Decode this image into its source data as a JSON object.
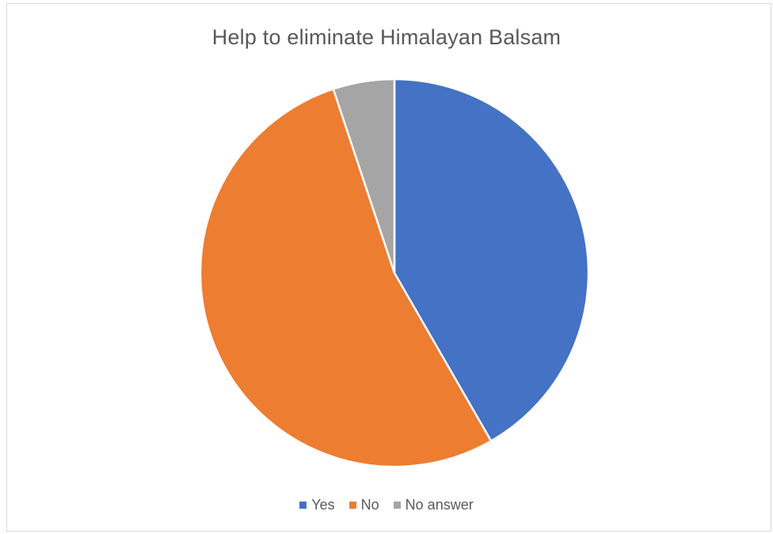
{
  "chart_data": {
    "type": "pie",
    "title": "Help to eliminate Himalayan Balsam",
    "categories": [
      "Yes",
      "No",
      "No answer"
    ],
    "values": [
      41.7,
      53.2,
      5.1
    ],
    "colors": [
      "#4472c4",
      "#ed7d31",
      "#a5a5a5"
    ],
    "legend_position": "bottom",
    "data_labels": false
  }
}
